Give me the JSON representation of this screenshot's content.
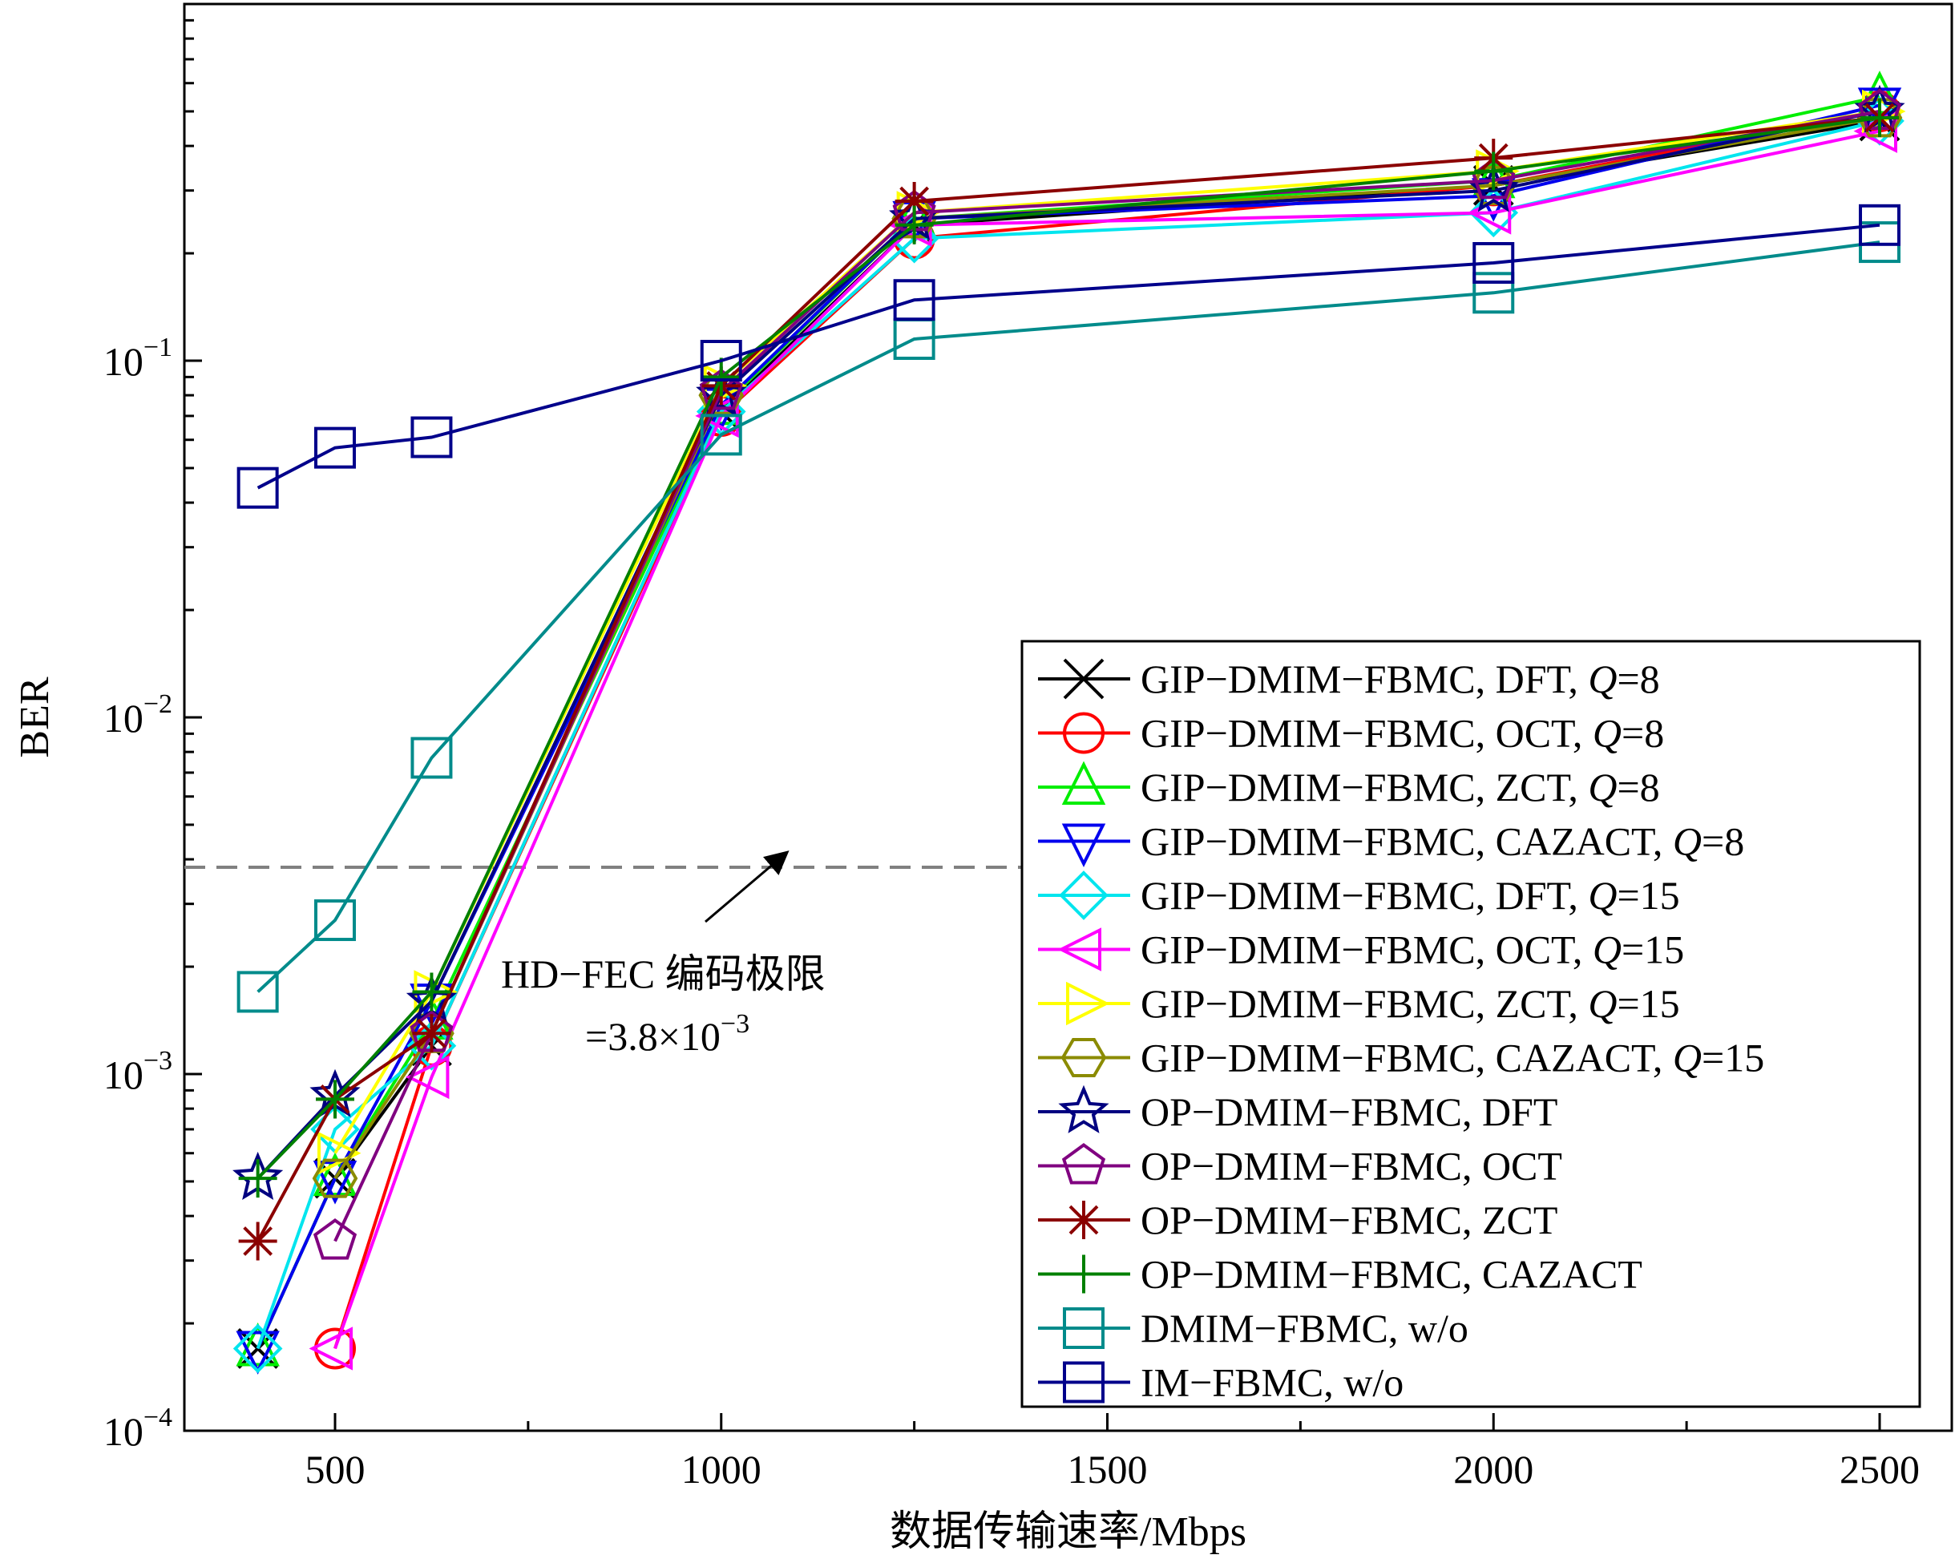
{
  "chart_data": {
    "type": "line",
    "title": "",
    "xlabel": "数据传输速率/Mbps",
    "ylabel": "BER",
    "y_scale": "log",
    "xlim": [
      300,
      2500
    ],
    "ylim": [
      0.0001,
      1
    ],
    "x_ticks": [
      500,
      1000,
      1500,
      2000,
      2500
    ],
    "y_ticks": [
      {
        "value": 0.0001,
        "mantissa": "10",
        "exp": "−4"
      },
      {
        "value": 0.001,
        "mantissa": "10",
        "exp": "−3"
      },
      {
        "value": 0.01,
        "mantissa": "10",
        "exp": "−2"
      },
      {
        "value": 0.1,
        "mantissa": "10",
        "exp": "−1"
      }
    ],
    "grid": false,
    "legend_position": "bottom-right",
    "threshold": {
      "value": 0.0038,
      "label_line1": "HD−FEC 编码极限",
      "label_line2_prefix": "=3.8×10",
      "label_line2_exp": "−3"
    },
    "series": [
      {
        "label_main": "GIP−DMIM−FBMC, DFT, ",
        "label_italic": "Q",
        "label_tail": "=8",
        "color": "#000000",
        "marker": "x",
        "x": [
          400,
          500,
          625,
          1000,
          1250,
          2000,
          2500
        ],
        "y": [
          0.00017,
          0.00051,
          0.0012,
          0.072,
          0.24,
          0.31,
          0.47
        ]
      },
      {
        "label_main": "GIP−DMIM−FBMC, OCT, ",
        "label_italic": "Q",
        "label_tail": "=8",
        "color": "#ff0000",
        "marker": "circle",
        "x": [
          500,
          625,
          1000,
          1250,
          2000,
          2500
        ],
        "y": [
          0.00017,
          0.0012,
          0.07,
          0.22,
          0.31,
          0.5
        ]
      },
      {
        "label_main": "GIP−DMIM−FBMC, ZCT, ",
        "label_italic": "Q",
        "label_tail": "=8",
        "color": "#00ee00",
        "marker": "triangle-up",
        "x": [
          400,
          500,
          625,
          1000,
          1250,
          2000,
          2500
        ],
        "y": [
          0.00017,
          0.00051,
          0.0014,
          0.074,
          0.25,
          0.32,
          0.55
        ]
      },
      {
        "label_main": "GIP−DMIM−FBMC, CAZACT, ",
        "label_italic": "Q",
        "label_tail": "=8",
        "color": "#0000ee",
        "marker": "triangle-down",
        "x": [
          400,
          500,
          625,
          1000,
          1250,
          2000,
          2500
        ],
        "y": [
          0.00017,
          0.00051,
          0.0016,
          0.075,
          0.25,
          0.29,
          0.52
        ]
      },
      {
        "label_main": "GIP−DMIM−FBMC, DFT, ",
        "label_italic": "Q",
        "label_tail": "=15",
        "color": "#00e5ee",
        "marker": "diamond",
        "x": [
          400,
          500,
          625,
          1000,
          1250,
          2000,
          2500
        ],
        "y": [
          0.00017,
          0.0007,
          0.0012,
          0.072,
          0.22,
          0.26,
          0.47
        ]
      },
      {
        "label_main": "GIP−DMIM−FBMC, OCT, ",
        "label_italic": "Q",
        "label_tail": "=15",
        "color": "#ff00ff",
        "marker": "triangle-left",
        "x": [
          500,
          625,
          1000,
          1250,
          2000,
          2500
        ],
        "y": [
          0.00017,
          0.00098,
          0.07,
          0.24,
          0.26,
          0.44
        ]
      },
      {
        "label_main": "GIP−DMIM−FBMC, ZCT, ",
        "label_italic": "Q",
        "label_tail": "=15",
        "color": "#ffff00",
        "marker": "triangle-right",
        "x": [
          500,
          625,
          1000,
          1250,
          2000,
          2500
        ],
        "y": [
          0.0006,
          0.0017,
          0.085,
          0.26,
          0.34,
          0.5
        ]
      },
      {
        "label_main": "GIP−DMIM−FBMC, CAZACT, ",
        "label_italic": "Q",
        "label_tail": "=15",
        "color": "#8b8b00",
        "marker": "hexagon",
        "x": [
          500,
          625,
          1000,
          1250,
          2000,
          2500
        ],
        "y": [
          0.00051,
          0.0013,
          0.08,
          0.25,
          0.31,
          0.48
        ]
      },
      {
        "label_main": "OP−DMIM−FBMC, DFT",
        "label_italic": "",
        "label_tail": "",
        "color": "#000080",
        "marker": "star",
        "x": [
          400,
          500,
          625,
          1000,
          1250,
          2000,
          2500
        ],
        "y": [
          0.00051,
          0.00087,
          0.0016,
          0.08,
          0.25,
          0.3,
          0.5
        ]
      },
      {
        "label_main": "OP−DMIM−FBMC, OCT",
        "label_italic": "",
        "label_tail": "",
        "color": "#800080",
        "marker": "pentagon",
        "x": [
          500,
          625,
          1000,
          1250,
          2000,
          2500
        ],
        "y": [
          0.00034,
          0.0013,
          0.082,
          0.26,
          0.32,
          0.5
        ]
      },
      {
        "label_main": "OP−DMIM−FBMC, ZCT",
        "label_italic": "",
        "label_tail": "",
        "color": "#8b0000",
        "marker": "asterisk",
        "x": [
          400,
          500,
          625,
          1000,
          1250,
          2000,
          2500
        ],
        "y": [
          0.00034,
          0.00085,
          0.0013,
          0.085,
          0.28,
          0.37,
          0.48
        ]
      },
      {
        "label_main": "OP−DMIM−FBMC, CAZACT",
        "label_italic": "",
        "label_tail": "",
        "color": "#008000",
        "marker": "plus",
        "x": [
          400,
          500,
          625,
          1000,
          1250,
          2000,
          2500
        ],
        "y": [
          0.00051,
          0.00085,
          0.0017,
          0.09,
          0.24,
          0.34,
          0.48
        ]
      },
      {
        "label_main": "DMIM−FBMC, w/o",
        "label_italic": "",
        "label_tail": "",
        "color": "#008b8b",
        "marker": "square",
        "x": [
          400,
          500,
          625,
          1000,
          1250,
          2000,
          2500
        ],
        "y": [
          0.0017,
          0.0027,
          0.0077,
          0.062,
          0.115,
          0.155,
          0.215
        ]
      },
      {
        "label_main": "IM−FBMC, w/o",
        "label_italic": "",
        "label_tail": "",
        "color": "#00008b",
        "marker": "square",
        "x": [
          400,
          500,
          625,
          1000,
          1250,
          2000,
          2500
        ],
        "y": [
          0.044,
          0.057,
          0.061,
          0.1,
          0.148,
          0.188,
          0.24
        ]
      }
    ]
  }
}
